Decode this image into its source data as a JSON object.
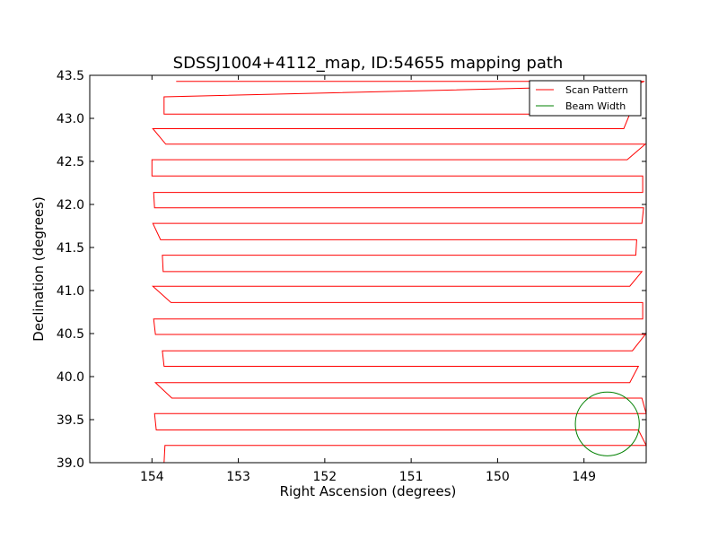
{
  "chart_data": {
    "type": "line",
    "title": "SDSSJ1004+4112_map, ID:54655 mapping path",
    "xlabel": "Right Ascension (degrees)",
    "ylabel": "Declination (degrees)",
    "xlim": [
      154.72,
      148.28
    ],
    "ylim": [
      39.0,
      43.5
    ],
    "x_ticks": [
      154,
      153,
      152,
      151,
      150,
      149
    ],
    "x_tick_labels": [
      "154",
      "153",
      "152",
      "151",
      "150",
      "149"
    ],
    "y_ticks": [
      39.0,
      39.5,
      40.0,
      40.5,
      41.0,
      41.5,
      42.0,
      42.5,
      43.0,
      43.5
    ],
    "y_tick_labels": [
      "39.0",
      "39.5",
      "40.0",
      "40.5",
      "41.0",
      "41.5",
      "42.0",
      "42.5",
      "43.0",
      "43.5"
    ],
    "grid": false,
    "legend_position": "top-right",
    "series": [
      {
        "name": "Scan Pattern",
        "color": "#ff0000",
        "x": [
          153.72,
          148.3,
          148.43,
          153.86,
          153.86,
          148.47,
          148.54,
          153.99,
          153.84,
          148.29,
          148.5,
          154.0,
          154.0,
          148.32,
          148.32,
          153.98,
          153.97,
          148.31,
          148.33,
          153.99,
          153.9,
          148.39,
          148.4,
          153.88,
          153.87,
          148.33,
          148.47,
          153.99,
          153.78,
          148.32,
          148.32,
          153.98,
          153.96,
          148.29,
          148.44,
          153.88,
          153.86,
          148.37,
          148.47,
          153.96,
          153.77,
          148.33,
          148.28,
          153.97,
          153.95,
          148.37,
          148.28,
          153.85,
          153.86,
          148.4
        ],
        "y": [
          43.43,
          43.43,
          43.38,
          43.25,
          43.05,
          43.05,
          42.88,
          42.88,
          42.7,
          42.7,
          42.52,
          42.52,
          42.33,
          42.33,
          42.14,
          42.14,
          41.96,
          41.96,
          41.78,
          41.78,
          41.59,
          41.59,
          41.41,
          41.41,
          41.22,
          41.22,
          41.05,
          41.05,
          40.86,
          40.86,
          40.67,
          40.67,
          40.49,
          40.49,
          40.3,
          40.3,
          40.12,
          40.12,
          39.93,
          39.93,
          39.75,
          39.75,
          39.57,
          39.57,
          39.38,
          39.38,
          39.2,
          39.2,
          39.0,
          39.0
        ]
      },
      {
        "name": "Beam Width",
        "color": "#008000",
        "type": "circle",
        "center": [
          148.73,
          39.45
        ],
        "radius_deg": 0.37
      }
    ]
  }
}
